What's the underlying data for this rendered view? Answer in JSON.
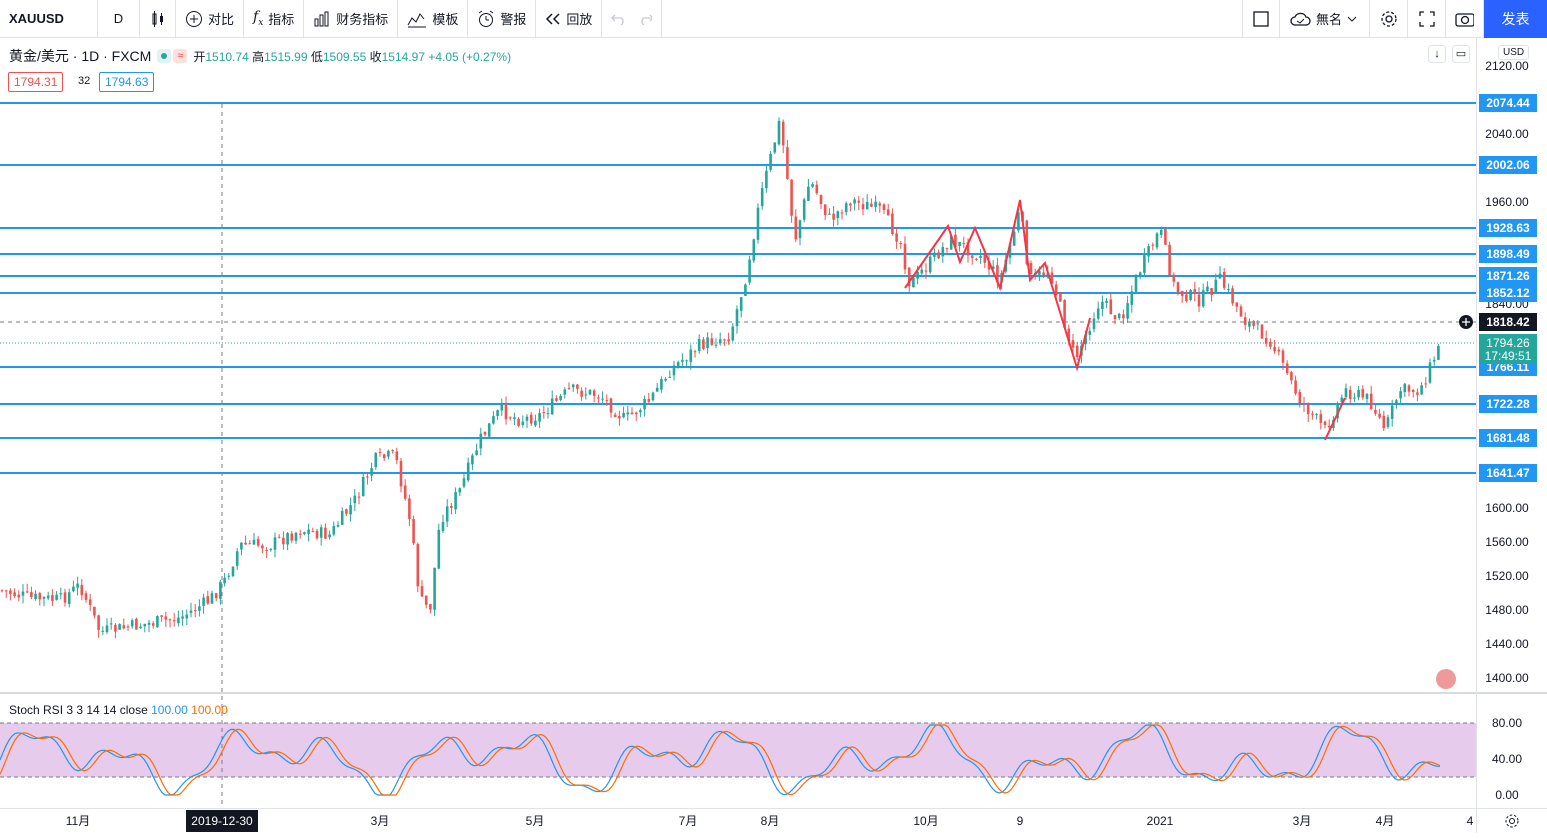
{
  "toolbar": {
    "symbol": "XAUUSD",
    "interval": "D",
    "compare": "对比",
    "indicators": "指标",
    "financials": "财务指标",
    "templates": "模板",
    "alerts": "警报",
    "replay": "回放",
    "layout_name": "無名",
    "publish": "发表"
  },
  "legend": {
    "pair": "黄金/美元 · 1D · FXCM",
    "open_label": "开",
    "open": "1510.74",
    "high_label": "高",
    "high": "1515.99",
    "low_label": "低",
    "low": "1509.55",
    "close_label": "收",
    "close": "1514.97",
    "change": "+4.05 (+0.27%)",
    "bid": "1794.31",
    "spread": "32",
    "ask": "1794.63"
  },
  "axis": {
    "currency": "USD",
    "ticks": [
      "2120.00",
      "2040.00",
      "1960.00",
      "1840.00",
      "1600.00",
      "1560.00",
      "1520.00",
      "1480.00",
      "1440.00",
      "1400.00"
    ],
    "levels": [
      "2074.44",
      "2002.06",
      "1928.63",
      "1898.49",
      "1871.26",
      "1852.12",
      "1766.11",
      "1722.28",
      "1681.48",
      "1641.47"
    ],
    "crosshair_price": "1818.42",
    "last_price": "1794.26",
    "countdown": "17:49:51"
  },
  "stoch": {
    "title": "Stoch RSI 3 3 14 14 close",
    "k": "100.00",
    "d": "100.00",
    "ticks": [
      "80.00",
      "40.00",
      "0.00"
    ]
  },
  "time_axis": {
    "labels": [
      "11月",
      "3月",
      "5月",
      "7月",
      "8月",
      "10月",
      "9",
      "2021",
      "3月",
      "4月",
      "4"
    ],
    "crosshair_date": "2019-12-30"
  },
  "colors": {
    "up": "#26a69a",
    "down": "#ef5350",
    "level": "#2196f3",
    "accent": "#2962ff",
    "stoch_k": "#2196f3",
    "stoch_d": "#ff6d00",
    "band": "#e1bee7"
  }
}
